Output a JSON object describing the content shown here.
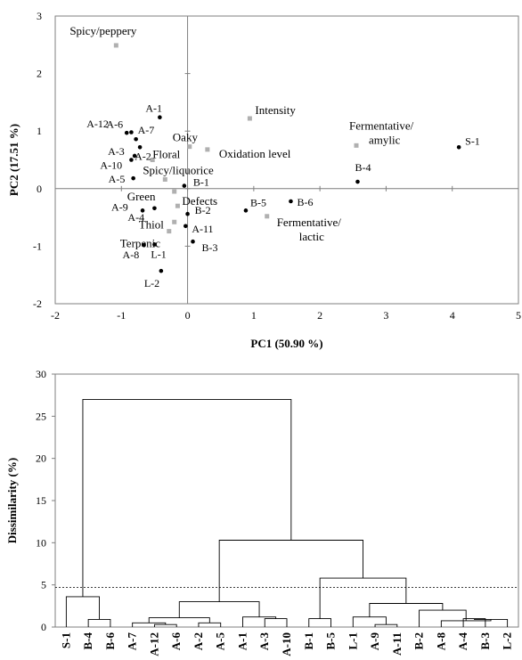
{
  "chart_data": [
    {
      "type": "scatter",
      "title": "",
      "xlabel": "PC1 (50.90 %)",
      "ylabel": "PC2  (17.51 %)",
      "xlim": [
        -2,
        5
      ],
      "ylim": [
        -2,
        3
      ],
      "xticks": [
        "-2",
        "-1",
        "0",
        "1",
        "2",
        "3",
        "4",
        "5"
      ],
      "yticks": [
        "-2",
        "-1",
        "0",
        "1",
        "2",
        "3"
      ],
      "grid": false,
      "colors": {
        "samples": "#000000",
        "attributes": "#b0b0b0"
      },
      "series": [
        {
          "name": "",
          "marker": "circle",
          "points": [
            {
              "label": "A-1",
              "x": -0.42,
              "y": 1.24
            },
            {
              "label": "A-6",
              "x": -0.85,
              "y": 0.98
            },
            {
              "label": "A-12",
              "x": -0.92,
              "y": 0.97
            },
            {
              "label": "A-7",
              "x": -0.78,
              "y": 0.86
            },
            {
              "label": "A-2",
              "x": -0.72,
              "y": 0.72
            },
            {
              "label": "A-3",
              "x": -0.8,
              "y": 0.57
            },
            {
              "label": "A-10",
              "x": -0.85,
              "y": 0.5
            },
            {
              "label": "A-5",
              "x": -0.82,
              "y": 0.18
            },
            {
              "label": "A-9",
              "x": -0.68,
              "y": -0.38
            },
            {
              "label": "A-4",
              "x": -0.5,
              "y": -0.34
            },
            {
              "label": "A-8",
              "x": -0.66,
              "y": -0.98
            },
            {
              "label": "L-1",
              "x": -0.5,
              "y": -0.97
            },
            {
              "label": "L-2",
              "x": -0.4,
              "y": -1.43
            },
            {
              "label": "B-1",
              "x": -0.05,
              "y": 0.05
            },
            {
              "label": "B-2",
              "x": 0.0,
              "y": -0.44
            },
            {
              "label": "A-11",
              "x": -0.03,
              "y": -0.65
            },
            {
              "label": "B-3",
              "x": 0.08,
              "y": -0.92
            },
            {
              "label": "B-5",
              "x": 0.88,
              "y": -0.38
            },
            {
              "label": "B-6",
              "x": 1.56,
              "y": -0.22
            },
            {
              "label": "B-4",
              "x": 2.57,
              "y": 0.12
            },
            {
              "label": "S-1",
              "x": 4.1,
              "y": 0.72
            }
          ]
        },
        {
          "name": "",
          "marker": "square",
          "points": [
            {
              "label": "Spicy/peppery",
              "x": -1.08,
              "y": 2.49
            },
            {
              "label": "Intensity",
              "x": 0.94,
              "y": 1.22
            },
            {
              "label": "Fermentative/ amylic",
              "x": 2.55,
              "y": 0.75
            },
            {
              "label": "Oaky",
              "x": 0.03,
              "y": 0.73
            },
            {
              "label": "Oxidation level",
              "x": 0.3,
              "y": 0.68
            },
            {
              "label": "Floral",
              "x": -0.53,
              "y": 0.5
            },
            {
              "label": "Spicy/liquorice",
              "x": -0.34,
              "y": 0.16
            },
            {
              "label": "Green",
              "x": -0.2,
              "y": -0.05
            },
            {
              "label": "Defects",
              "x": -0.15,
              "y": -0.3
            },
            {
              "label": "Thiol",
              "x": -0.2,
              "y": -0.58
            },
            {
              "label": "Terpenic",
              "x": -0.28,
              "y": -0.74
            },
            {
              "label": "Fermentative/ lactic",
              "x": 1.2,
              "y": -0.48
            }
          ]
        }
      ]
    },
    {
      "type": "dendrogram",
      "title": "",
      "xlabel": "",
      "ylabel": "Dissimilarity (%)",
      "ylim": [
        0,
        30
      ],
      "yticks": [
        "0",
        "5",
        "10",
        "15",
        "20",
        "25",
        "30"
      ],
      "cut_line": 4.7,
      "leaves": [
        "S-1",
        "B-4",
        "B-6",
        "A-7",
        "A-12",
        "A-6",
        "A-2",
        "A-5",
        "A-1",
        "A-3",
        "A-10",
        "B-1",
        "B-5",
        "L-1",
        "A-9",
        "A-11",
        "B-2",
        "A-8",
        "A-4",
        "B-3",
        "L-2"
      ],
      "merges": [
        {
          "left": "B-4",
          "right": "B-6",
          "height": 0.9
        },
        {
          "left": "S-1",
          "right": "c0",
          "height": 3.6
        },
        {
          "left": "A-12",
          "right": "A-6",
          "height": 0.3
        },
        {
          "left": "A-7",
          "right": "c2",
          "height": 0.5
        },
        {
          "left": "A-2",
          "right": "A-5",
          "height": 0.5
        },
        {
          "left": "c3",
          "right": "c4",
          "height": 1.1
        },
        {
          "left": "A-3",
          "right": "A-10",
          "height": 1.0
        },
        {
          "left": "A-1",
          "right": "c6",
          "height": 1.2
        },
        {
          "left": "c5",
          "right": "c7",
          "height": 3.0
        },
        {
          "left": "B-1",
          "right": "B-5",
          "height": 1.0
        },
        {
          "left": "A-9",
          "right": "A-11",
          "height": 0.3
        },
        {
          "left": "L-1",
          "right": "c10",
          "height": 1.2
        },
        {
          "left": "A-4",
          "right": "B-3",
          "height": 1.0
        },
        {
          "left": "c12",
          "right": "L-2",
          "height": 0.9
        },
        {
          "left": "A-8",
          "right": "c13",
          "height": 0.75
        },
        {
          "left": "B-2",
          "right": "c14",
          "height": 2.0
        },
        {
          "left": "c11",
          "right": "c15",
          "height": 2.8
        },
        {
          "left": "c9",
          "right": "c16",
          "height": 5.8
        },
        {
          "left": "c8",
          "right": "c17",
          "height": 10.3
        },
        {
          "left": "c1",
          "right": "c18",
          "height": 27.0
        }
      ]
    }
  ]
}
